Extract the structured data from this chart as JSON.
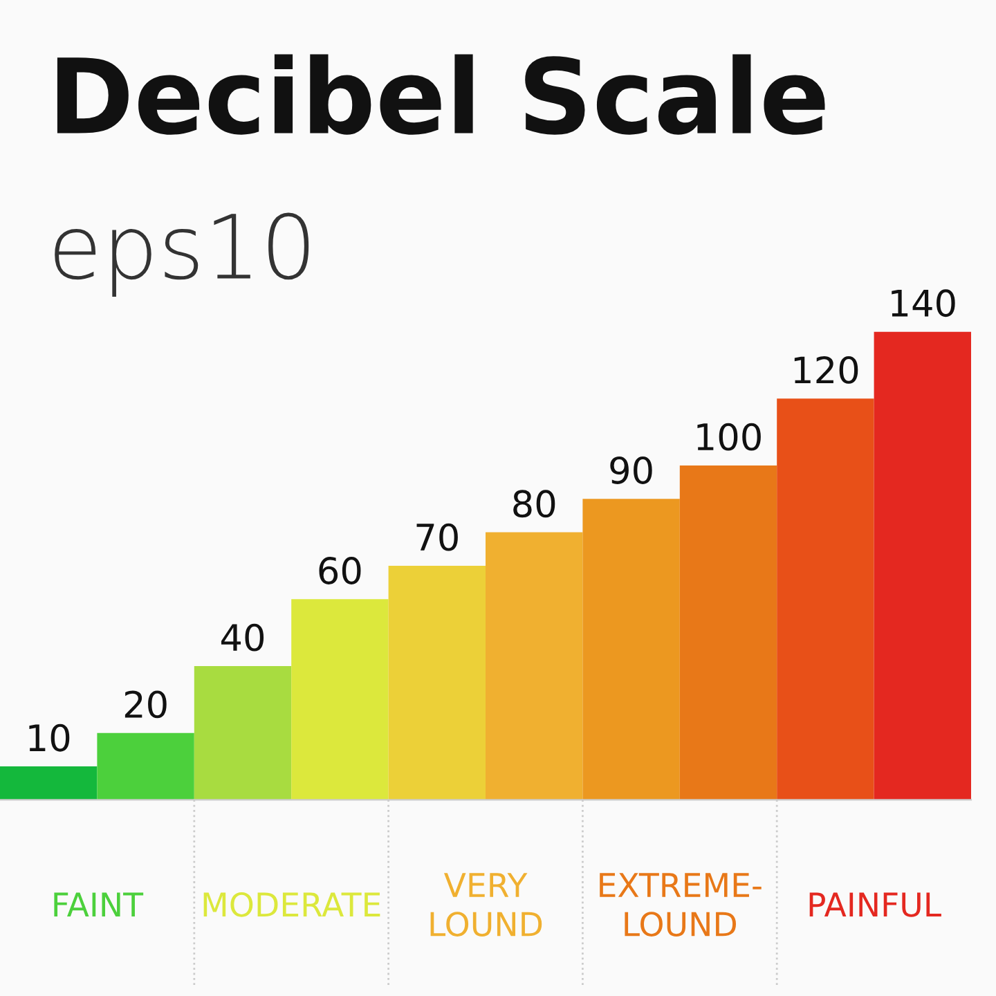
{
  "chart_data": {
    "type": "bar",
    "title": "Decibel Scale",
    "subtitle": "eps10",
    "categories": [
      null,
      null,
      null,
      null,
      null,
      null,
      null,
      null,
      null,
      null
    ],
    "values": [
      10,
      20,
      40,
      60,
      70,
      80,
      90,
      100,
      120,
      140
    ],
    "colors": [
      "#14b83c",
      "#4cd03c",
      "#a8dc40",
      "#dce83c",
      "#ecd038",
      "#f0b030",
      "#ec9820",
      "#e87818",
      "#e85018",
      "#e42820"
    ],
    "data_labels": true,
    "annotations": [
      "FAINT",
      "MODERATE",
      "VERY\nLOUND",
      "EXTREME-\nLOUND",
      "PAINFUL"
    ]
  }
}
